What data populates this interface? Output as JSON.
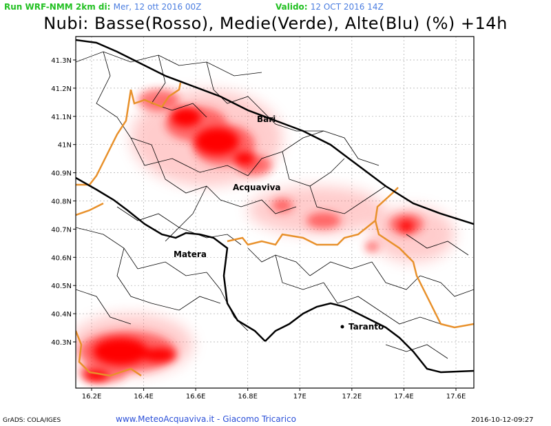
{
  "header": {
    "run_label": "Run WRF-NMM 2km di:",
    "run_value": "Mer, 12 ott 2016 00Z",
    "valid_label": "Valido:",
    "valid_value": "12 OCT 2016 14Z",
    "title": "Nubi: Basse(Rosso), Medie(Verde), Alte(Blu) (%) +14h"
  },
  "axes": {
    "lat_ticks": [
      "41.3N",
      "41.2N",
      "41.1N",
      "41N",
      "40.9N",
      "40.8N",
      "40.7N",
      "40.6N",
      "40.5N",
      "40.4N",
      "40.3N"
    ],
    "lon_ticks": [
      "16.2E",
      "16.4E",
      "16.6E",
      "16.8E",
      "17E",
      "17.2E",
      "17.4E",
      "17.6E"
    ]
  },
  "cities": [
    {
      "name": "Bari"
    },
    {
      "name": "Acquaviva"
    },
    {
      "name": "Matera"
    },
    {
      "name": "Taranto"
    }
  ],
  "colors": {
    "low_clouds": "#ff0000",
    "region_border": "#e8902a",
    "coast": "#000000",
    "grid": "#aaaaaa"
  },
  "footer": {
    "left": "GrADS: COLA/IGES",
    "center": "www.MeteoAcquaviva.it  -  Giacomo Tricarico",
    "right": "2016-10-12-09:27"
  }
}
